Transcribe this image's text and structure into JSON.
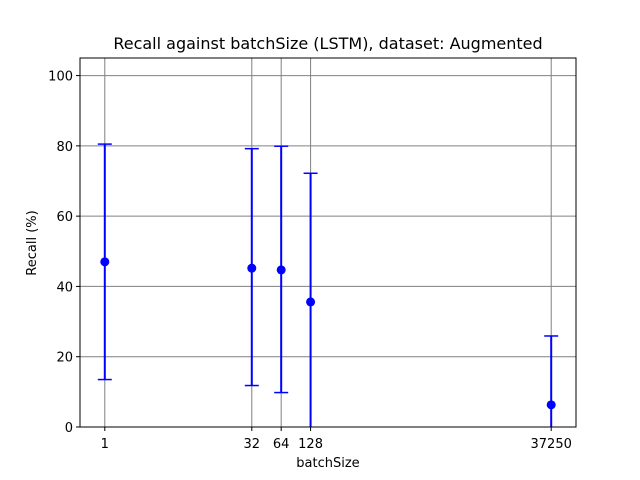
{
  "chart_data": {
    "type": "scatter",
    "title": "Recall against batchSize (LSTM), dataset: Augmented",
    "xlabel": "batchSize",
    "ylabel": "Recall (%)",
    "x_scale": "log",
    "xlim_note": "log-scale axis with ticks only at data positions",
    "x_ticks": [
      "1",
      "32",
      "64",
      "128",
      "37250"
    ],
    "y_ticks": [
      "0",
      "20",
      "40",
      "60",
      "80",
      "100"
    ],
    "ylim": [
      0,
      105
    ],
    "grid": true,
    "color": "#0000ff",
    "series": [
      {
        "points": [
          {
            "x": 1,
            "y": 47.0,
            "err_low": 13.5,
            "err_high": 80.5
          },
          {
            "x": 32,
            "y": 45.2,
            "err_low": 11.8,
            "err_high": 79.2
          },
          {
            "x": 64,
            "y": 44.7,
            "err_low": 9.8,
            "err_high": 79.9
          },
          {
            "x": 128,
            "y": 35.6,
            "err_low": 0,
            "err_high": 72.2
          },
          {
            "x": 37250,
            "y": 6.3,
            "err_low": 0,
            "err_high": 25.9
          }
        ]
      }
    ]
  }
}
